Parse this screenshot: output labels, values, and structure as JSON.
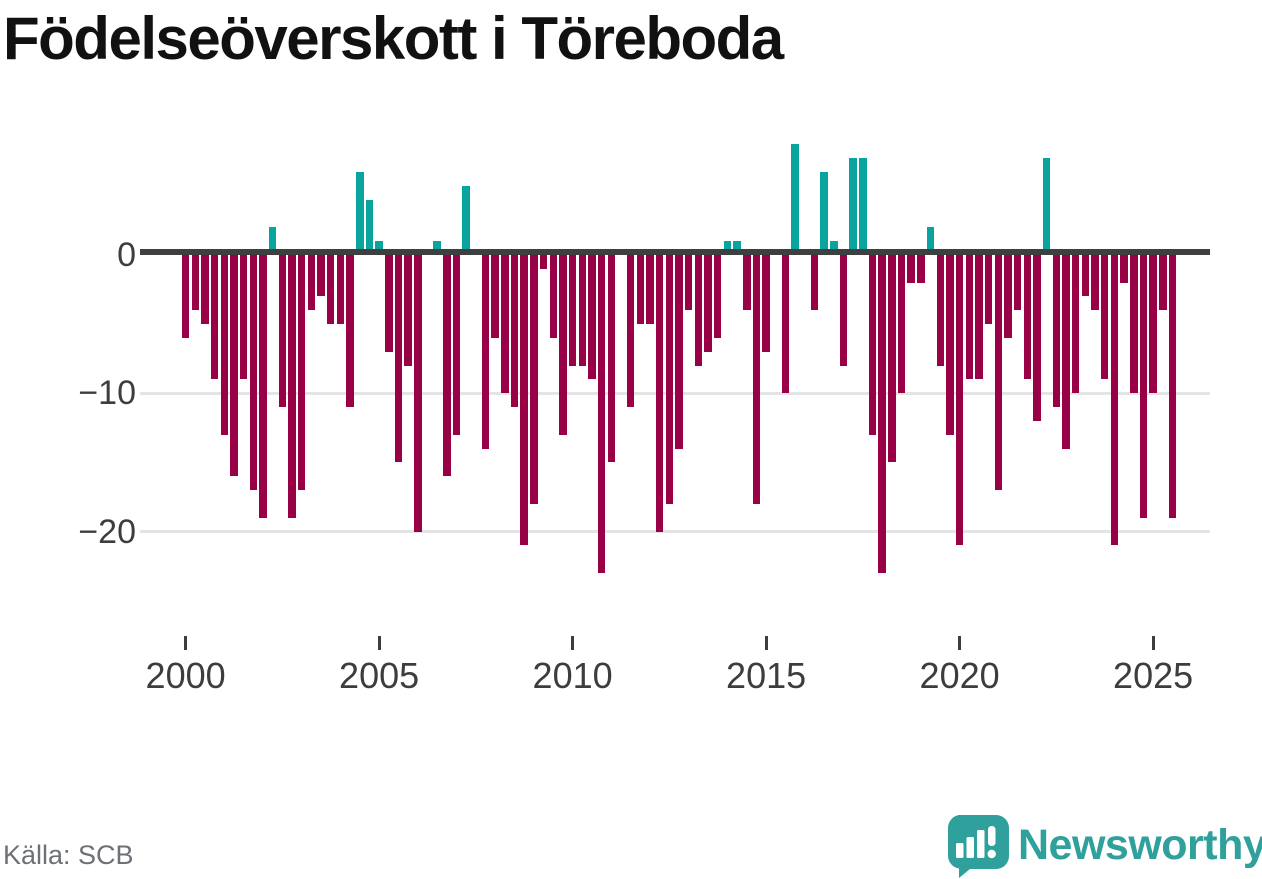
{
  "title": "Födelseöverskott i Töreboda",
  "source": "Källa: SCB",
  "branding": {
    "name": "Newsworthy",
    "logo_icon": "bar-chart-speech-bubble"
  },
  "colors": {
    "negative_bar": "#990146",
    "positive_bar": "#0aa49e",
    "zero_axis": "#3d3f40",
    "gridline": "#e4e4e4",
    "title_text": "#111111",
    "tick_text": "#3d3d3d",
    "source_text": "#6d7177",
    "brand_teal": "#2fa09b"
  },
  "chart_data": {
    "type": "bar",
    "title": "Födelseöverskott i Töreboda",
    "frequency": "quarterly",
    "x_start": {
      "year": 2000,
      "quarter": 1
    },
    "x_end": {
      "year": 2025,
      "quarter": 3
    },
    "values": [
      -6,
      -4,
      -5,
      -9,
      -13,
      -16,
      -9,
      -17,
      -19,
      2,
      -11,
      -19,
      -17,
      -4,
      -3,
      -5,
      -5,
      -11,
      6,
      4,
      1,
      -7,
      -15,
      -8,
      -20,
      0,
      1,
      -16,
      -13,
      5,
      0,
      -14,
      -6,
      -10,
      -11,
      -21,
      -18,
      -1,
      -6,
      -13,
      -8,
      -8,
      -9,
      -23,
      -15,
      0,
      -11,
      -5,
      -5,
      -20,
      -18,
      -14,
      -4,
      -8,
      -7,
      -6,
      1,
      1,
      -4,
      -18,
      -7,
      0,
      -10,
      8,
      0,
      -4,
      6,
      1,
      -8,
      7,
      7,
      -13,
      -23,
      -15,
      -10,
      -2,
      -2,
      2,
      -8,
      -13,
      -21,
      -9,
      -9,
      -5,
      -17,
      -6,
      -4,
      -9,
      -12,
      7,
      -11,
      -14,
      -10,
      -3,
      -4,
      -9,
      -21,
      -2,
      -10,
      -19,
      -10,
      -4,
      -19
    ],
    "y_ticks": [
      {
        "label": "0",
        "value": 0
      },
      {
        "label": "−10",
        "value": -10
      },
      {
        "label": "−20",
        "value": -20
      }
    ],
    "x_ticks": [
      {
        "label": "2000",
        "year": 2000
      },
      {
        "label": "2005",
        "year": 2005
      },
      {
        "label": "2010",
        "year": 2010
      },
      {
        "label": "2015",
        "year": 2015
      },
      {
        "label": "2020",
        "year": 2020
      },
      {
        "label": "2025",
        "year": 2025
      }
    ],
    "ylim": [
      -24.5,
      9
    ],
    "grid": "horizontal",
    "legend": "none"
  }
}
